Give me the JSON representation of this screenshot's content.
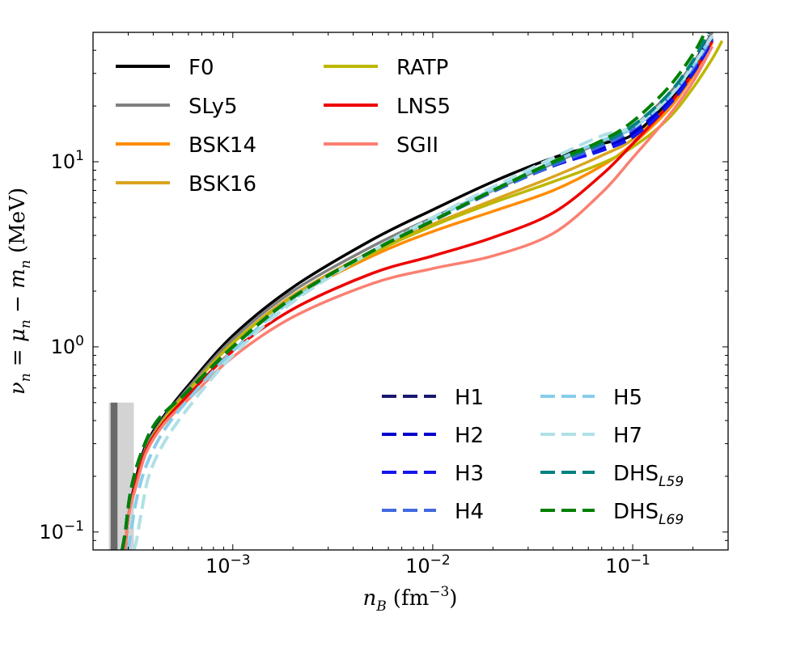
{
  "chart_data": {
    "type": "line",
    "xscale": "log",
    "yscale": "log",
    "xlim": [
      0.0002,
      0.3
    ],
    "ylim": [
      0.08,
      50
    ],
    "xlabel_main": "n",
    "xlabel_sub": "B",
    "xlabel_unit": "(fm",
    "xlabel_unit_exp": "−3",
    "xlabel_unit_close": ")",
    "ylabel": "νn = μn − mn (MeV)",
    "ylabel_parts": {
      "nu": "ν",
      "n1": "n",
      "eq": " = ",
      "mu": "μ",
      "n2": "n",
      "minus": " − ",
      "m": "m",
      "n3": "n",
      "unit": " (MeV)"
    },
    "xticks": [
      {
        "value": 0.001,
        "base": "10",
        "exp": "−3"
      },
      {
        "value": 0.01,
        "base": "10",
        "exp": "−2"
      },
      {
        "value": 0.1,
        "base": "10",
        "exp": "−1"
      }
    ],
    "yticks": [
      {
        "value": 0.1,
        "base": "10",
        "exp": "−1"
      },
      {
        "value": 1,
        "base": "10",
        "exp": "0"
      },
      {
        "value": 10,
        "base": "10",
        "exp": "1"
      }
    ],
    "shaded_band": {
      "x_range": [
        0.00024,
        0.00032
      ],
      "y_max": 0.5,
      "inner_x_range": [
        0.000245,
        0.000265
      ]
    },
    "legend_solid": [
      {
        "name": "F0",
        "color": "#000000"
      },
      {
        "name": "SLy5",
        "color": "#808080"
      },
      {
        "name": "BSK14",
        "color": "#ff8c00"
      },
      {
        "name": "BSK16",
        "color": "#daa520"
      },
      {
        "name": "RATP",
        "color": "#bdb700"
      },
      {
        "name": "LNS5",
        "color": "#ee0000"
      },
      {
        "name": "SGII",
        "color": "#fa8072"
      }
    ],
    "legend_dashed": [
      {
        "name": "H1",
        "sub": "",
        "color": "#191970"
      },
      {
        "name": "H2",
        "sub": "",
        "color": "#0000cd"
      },
      {
        "name": "H3",
        "sub": "",
        "color": "#1515ee"
      },
      {
        "name": "H4",
        "sub": "",
        "color": "#4169e1"
      },
      {
        "name": "H5",
        "sub": "",
        "color": "#87ceeb"
      },
      {
        "name": "H7",
        "sub": "",
        "color": "#b0e0e6"
      },
      {
        "name": "DHS",
        "sub": "L59",
        "color": "#008080"
      },
      {
        "name": "DHS",
        "sub": "L69",
        "color": "#008000"
      }
    ],
    "series": [
      {
        "name": "F0",
        "style": "solid",
        "color": "#000000",
        "x": [
          0.00029,
          0.0003,
          0.00033,
          0.00037,
          0.00045,
          0.0006,
          0.001,
          0.002,
          0.005,
          0.01,
          0.02,
          0.04,
          0.07,
          0.1,
          0.15,
          0.2,
          0.25
        ],
        "y": [
          0.08,
          0.12,
          0.2,
          0.3,
          0.42,
          0.62,
          1.15,
          2.1,
          3.8,
          5.5,
          7.8,
          10.5,
          12.5,
          14.0,
          21.0,
          32.0,
          48.0
        ]
      },
      {
        "name": "SLy5",
        "style": "solid",
        "color": "#808080",
        "x": [
          0.00029,
          0.0003,
          0.00033,
          0.00037,
          0.00045,
          0.0006,
          0.001,
          0.002,
          0.005,
          0.01,
          0.02,
          0.04,
          0.07,
          0.1,
          0.15,
          0.2,
          0.25
        ],
        "y": [
          0.08,
          0.12,
          0.19,
          0.29,
          0.41,
          0.6,
          1.1,
          2.0,
          3.5,
          5.0,
          7.0,
          9.8,
          12.8,
          15.5,
          23.0,
          34.0,
          50.0
        ]
      },
      {
        "name": "BSK14",
        "style": "solid",
        "color": "#ff8c00",
        "x": [
          0.00029,
          0.0003,
          0.00033,
          0.00037,
          0.00045,
          0.0006,
          0.001,
          0.002,
          0.005,
          0.01,
          0.02,
          0.04,
          0.07,
          0.1,
          0.15,
          0.2,
          0.25
        ],
        "y": [
          0.08,
          0.12,
          0.19,
          0.28,
          0.4,
          0.58,
          1.05,
          1.85,
          3.1,
          4.2,
          5.4,
          7.0,
          9.5,
          12.5,
          19.0,
          29.0,
          44.0
        ]
      },
      {
        "name": "BSK16",
        "style": "solid",
        "color": "#daa520",
        "x": [
          0.00029,
          0.0003,
          0.00033,
          0.00037,
          0.00045,
          0.0006,
          0.001,
          0.002,
          0.005,
          0.01,
          0.02,
          0.04,
          0.07,
          0.1,
          0.15,
          0.2,
          0.25
        ],
        "y": [
          0.08,
          0.12,
          0.19,
          0.28,
          0.4,
          0.58,
          1.05,
          1.9,
          3.3,
          4.6,
          6.2,
          8.3,
          10.8,
          13.2,
          20.0,
          30.0,
          46.0
        ]
      },
      {
        "name": "RATP",
        "style": "solid",
        "color": "#bdb700",
        "x": [
          0.00029,
          0.0003,
          0.00033,
          0.00037,
          0.00045,
          0.0006,
          0.001,
          0.002,
          0.005,
          0.01,
          0.02,
          0.04,
          0.07,
          0.1,
          0.15,
          0.2,
          0.25,
          0.28
        ],
        "y": [
          0.08,
          0.12,
          0.19,
          0.28,
          0.4,
          0.58,
          1.05,
          1.85,
          3.2,
          4.5,
          6.0,
          7.8,
          9.8,
          12.0,
          17.0,
          25.0,
          36.0,
          45.0
        ]
      },
      {
        "name": "LNS5",
        "style": "solid",
        "color": "#ee0000",
        "x": [
          0.00029,
          0.0003,
          0.00033,
          0.00037,
          0.00045,
          0.0006,
          0.001,
          0.002,
          0.005,
          0.01,
          0.02,
          0.04,
          0.07,
          0.1,
          0.15,
          0.2,
          0.25
        ],
        "y": [
          0.08,
          0.12,
          0.19,
          0.28,
          0.39,
          0.55,
          0.95,
          1.6,
          2.5,
          3.1,
          3.9,
          5.3,
          8.5,
          12.5,
          20.0,
          30.0,
          45.0
        ]
      },
      {
        "name": "SGII",
        "style": "solid",
        "color": "#fa8072",
        "x": [
          0.00029,
          0.0003,
          0.00033,
          0.00037,
          0.00045,
          0.0006,
          0.001,
          0.002,
          0.005,
          0.01,
          0.02,
          0.04,
          0.07,
          0.1,
          0.15,
          0.2,
          0.25
        ],
        "y": [
          0.08,
          0.12,
          0.18,
          0.27,
          0.38,
          0.52,
          0.88,
          1.45,
          2.2,
          2.65,
          3.1,
          4.1,
          6.8,
          10.5,
          17.5,
          27.0,
          42.0
        ]
      },
      {
        "name": "H1",
        "style": "dashed",
        "color": "#191970",
        "x": [
          0.00028,
          0.00029,
          0.00031,
          0.00035,
          0.00042,
          0.0006,
          0.001,
          0.002,
          0.005,
          0.01,
          0.02,
          0.04,
          0.07,
          0.1,
          0.15,
          0.2,
          0.24
        ],
        "y": [
          0.08,
          0.1,
          0.17,
          0.27,
          0.4,
          0.58,
          1.0,
          1.85,
          3.3,
          4.8,
          6.9,
          9.6,
          12.0,
          14.8,
          22.0,
          33.0,
          48.0
        ]
      },
      {
        "name": "H2",
        "style": "dashed",
        "color": "#0000cd",
        "x": [
          0.00028,
          0.00029,
          0.00031,
          0.00035,
          0.00042,
          0.0006,
          0.001,
          0.002,
          0.005,
          0.01,
          0.02,
          0.04,
          0.07,
          0.1,
          0.15,
          0.2,
          0.25
        ],
        "y": [
          0.08,
          0.1,
          0.17,
          0.27,
          0.4,
          0.58,
          1.0,
          1.85,
          3.3,
          4.8,
          6.9,
          9.6,
          11.8,
          14.2,
          21.0,
          31.0,
          46.0
        ]
      },
      {
        "name": "H3",
        "style": "dashed",
        "color": "#1515ee",
        "x": [
          0.00028,
          0.00029,
          0.00031,
          0.00035,
          0.00042,
          0.0006,
          0.001,
          0.002,
          0.005,
          0.01,
          0.02,
          0.04,
          0.07,
          0.1,
          0.15,
          0.2,
          0.25
        ],
        "y": [
          0.08,
          0.1,
          0.17,
          0.27,
          0.4,
          0.58,
          1.0,
          1.85,
          3.3,
          4.8,
          6.9,
          9.5,
          11.5,
          13.6,
          20.0,
          30.0,
          45.0
        ]
      },
      {
        "name": "H4",
        "style": "dashed",
        "color": "#4169e1",
        "x": [
          0.00028,
          0.00029,
          0.00031,
          0.00035,
          0.00042,
          0.0006,
          0.001,
          0.002,
          0.005,
          0.01,
          0.02,
          0.04,
          0.07,
          0.1,
          0.15,
          0.2,
          0.25
        ],
        "y": [
          0.08,
          0.1,
          0.17,
          0.27,
          0.4,
          0.58,
          1.0,
          1.85,
          3.3,
          4.8,
          6.9,
          9.6,
          12.2,
          15.0,
          22.0,
          32.0,
          47.0
        ]
      },
      {
        "name": "H5",
        "style": "dashed",
        "color": "#87ceeb",
        "x": [
          0.0003,
          0.00031,
          0.00033,
          0.00037,
          0.00045,
          0.0006,
          0.001,
          0.002,
          0.005,
          0.01,
          0.02,
          0.04,
          0.07,
          0.1,
          0.15,
          0.2,
          0.25
        ],
        "y": [
          0.08,
          0.1,
          0.15,
          0.23,
          0.35,
          0.52,
          0.95,
          1.8,
          3.3,
          4.9,
          7.1,
          10.0,
          13.0,
          15.2,
          22.0,
          33.0,
          48.0
        ]
      },
      {
        "name": "H7",
        "style": "dashed",
        "color": "#b0e0e6",
        "x": [
          0.00032,
          0.00033,
          0.00035,
          0.00038,
          0.00045,
          0.0006,
          0.001,
          0.002,
          0.005,
          0.01,
          0.02,
          0.04,
          0.07,
          0.1,
          0.15,
          0.2,
          0.25
        ],
        "y": [
          0.08,
          0.09,
          0.13,
          0.2,
          0.3,
          0.47,
          0.9,
          1.75,
          3.3,
          5.0,
          7.3,
          10.5,
          13.8,
          15.5,
          22.0,
          33.0,
          48.0
        ]
      },
      {
        "name": "DHS_L59",
        "style": "dashed",
        "color": "#008080",
        "x": [
          0.00028,
          0.00029,
          0.00031,
          0.00035,
          0.00042,
          0.0006,
          0.001,
          0.002,
          0.005,
          0.01,
          0.02,
          0.04,
          0.07,
          0.1,
          0.15,
          0.2,
          0.24
        ],
        "y": [
          0.08,
          0.1,
          0.17,
          0.27,
          0.4,
          0.58,
          1.0,
          1.85,
          3.3,
          4.8,
          7.0,
          9.8,
          12.6,
          15.6,
          23.0,
          35.0,
          50.0
        ]
      },
      {
        "name": "DHS_L69",
        "style": "dashed",
        "color": "#008000",
        "x": [
          0.00028,
          0.00029,
          0.00031,
          0.00035,
          0.00042,
          0.0006,
          0.001,
          0.002,
          0.005,
          0.01,
          0.02,
          0.04,
          0.07,
          0.1,
          0.15,
          0.2,
          0.23
        ],
        "y": [
          0.08,
          0.1,
          0.17,
          0.27,
          0.4,
          0.58,
          1.0,
          1.85,
          3.3,
          4.8,
          7.0,
          10.0,
          13.0,
          16.5,
          25.0,
          38.0,
          50.0
        ]
      }
    ]
  }
}
